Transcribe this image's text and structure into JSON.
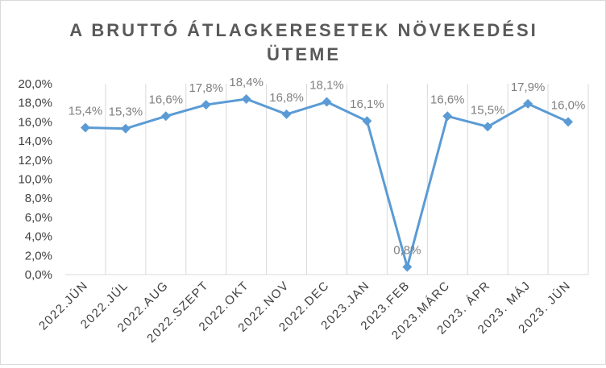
{
  "chart_data": {
    "type": "line",
    "title_lines": [
      "A BRUTTÓ ÁTLAGKERESETEK NÖVEKEDÉSI",
      "ÜTEME"
    ],
    "categories": [
      "2022.JÚN",
      "2022.JÚL",
      "2022.AUG",
      "2022.SZEPT",
      "2022.OKT",
      "2022.NOV",
      "2022.DEC",
      "2023.JAN",
      "2023.FEB",
      "2023.MÁRC",
      "2023. ÁPR",
      "2023. MÁJ",
      "2023. JÚN"
    ],
    "series": [
      {
        "values": [
          15.4,
          15.3,
          16.6,
          17.8,
          18.4,
          16.8,
          18.1,
          16.1,
          0.8,
          16.6,
          15.5,
          17.9,
          16.0
        ],
        "data_labels": [
          "15,4%",
          "15,3%",
          "16,6%",
          "17,8%",
          "18,4%",
          "16,8%",
          "18,1%",
          "16,1%",
          "0,8%",
          "16,6%",
          "15,5%",
          "17,9%",
          "16,0%"
        ],
        "color": "#5b9bd5"
      }
    ],
    "y_ticks": [
      "0,0%",
      "2,0%",
      "4,0%",
      "6,0%",
      "8,0%",
      "10,0%",
      "12,0%",
      "14,0%",
      "16,0%",
      "18,0%",
      "20,0%"
    ],
    "ylim": [
      0,
      20
    ],
    "grid": "vertical",
    "legend": "none"
  }
}
